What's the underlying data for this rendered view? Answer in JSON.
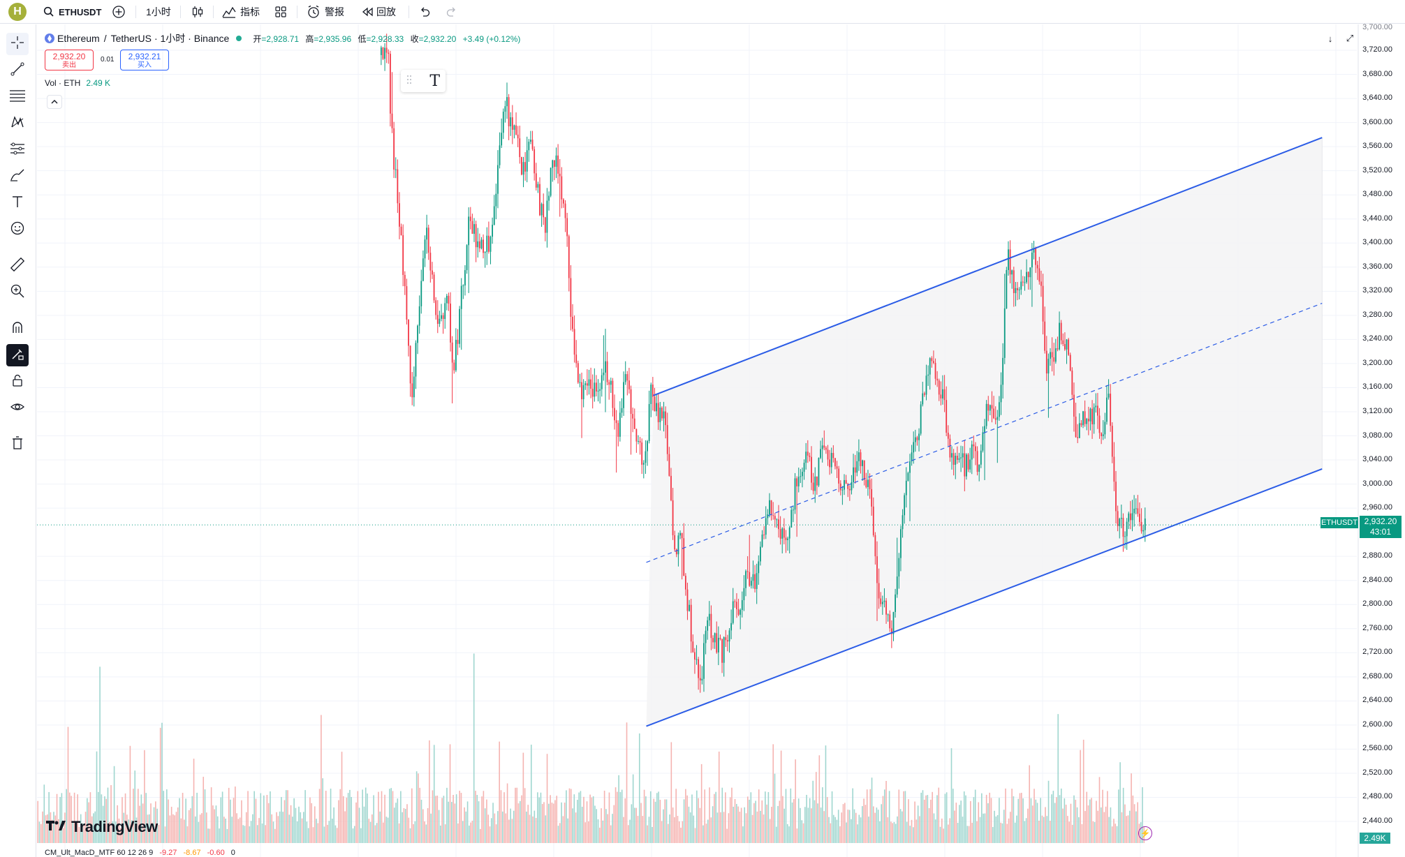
{
  "topbar": {
    "avatar_letter": "H",
    "symbol": "ETHUSDT",
    "interval": "1小时",
    "indicators_label": "指标",
    "alert_label": "警报",
    "replay_label": "回放"
  },
  "legend": {
    "base": "Ethereum",
    "separator": "/",
    "quote": "TetherUS",
    "meta": "· 1小时 · Binance",
    "open_label": "开",
    "open": "=2,928.71",
    "high_label": "高",
    "high": "=2,935.96",
    "low_label": "低",
    "low": "=2,928.33",
    "close_label": "收",
    "close": "=2,932.20",
    "change": "+3.49 (+0.12%)"
  },
  "order": {
    "sell_price": "2,932.20",
    "sell_label": "卖出",
    "spread": "0.01",
    "buy_price": "2,932.21",
    "buy_label": "买入"
  },
  "volume_legend": {
    "label": "Vol · ETH",
    "value": "2.49 K"
  },
  "float_toolbar": {
    "text_icon": "T"
  },
  "axis": {
    "ticks": [
      "3,700.00",
      "3,720.00",
      "3,680.00",
      "3,640.00",
      "3,600.00",
      "3,560.00",
      "3,520.00",
      "3,480.00",
      "3,440.00",
      "3,400.00",
      "3,360.00",
      "3,320.00",
      "3,280.00",
      "3,240.00",
      "3,200.00",
      "3,160.00",
      "3,120.00",
      "3,080.00",
      "3,040.00",
      "3,000.00",
      "2,960.00",
      "2,880.00",
      "2,840.00",
      "2,800.00",
      "2,760.00",
      "2,720.00",
      "2,680.00",
      "2,640.00",
      "2,600.00",
      "2,560.00",
      "2,520.00",
      "2,480.00",
      "2,440.00"
    ]
  },
  "price_tag": {
    "symbol": "ETHUSDT",
    "price": "2,932.20",
    "countdown": "43:01"
  },
  "volume_tag": "2.49K",
  "brand": "TradingView",
  "macd_legend": {
    "label": "CM_Ult_MacD_MTF 60 12 26 9",
    "v1": "-9.27",
    "v2": "-8.67",
    "v3": "-0.60",
    "v4": "0"
  },
  "colors": {
    "up": "#089981",
    "down": "#f23645",
    "channel": "#2b5ce6",
    "volume_up": "#9fd6cf",
    "volume_down": "#f5b3b0"
  },
  "icons": [
    "search-icon",
    "plus-circle-icon",
    "candles-icon",
    "indicators-icon",
    "templates-icon",
    "alert-icon",
    "replay-icon",
    "undo-icon",
    "redo-icon",
    "crosshair-icon",
    "trendline-icon",
    "fib-icon",
    "pattern-icon",
    "prediction-icon",
    "brush-icon",
    "text-icon",
    "emoji-icon",
    "ruler-icon",
    "zoom-icon",
    "magnet-icon",
    "draw-mode-icon",
    "lock-icon",
    "eye-icon",
    "trash-icon"
  ],
  "chart_data": {
    "type": "candlestick",
    "symbol": "ETHUSDT",
    "interval": "1小时",
    "ylim": [
      2420,
      3700
    ],
    "last_price": 2932.2,
    "close_path": [
      [
        0.27,
        3712
      ],
      [
        0.277,
        3700
      ],
      [
        0.278,
        3600
      ],
      [
        0.283,
        3470
      ],
      [
        0.289,
        3300
      ],
      [
        0.293,
        3150
      ],
      [
        0.298,
        3280
      ],
      [
        0.303,
        3420
      ],
      [
        0.308,
        3330
      ],
      [
        0.313,
        3260
      ],
      [
        0.318,
        3320
      ],
      [
        0.323,
        3190
      ],
      [
        0.328,
        3300
      ],
      [
        0.334,
        3440
      ],
      [
        0.34,
        3400
      ],
      [
        0.345,
        3380
      ],
      [
        0.35,
        3420
      ],
      [
        0.355,
        3550
      ],
      [
        0.36,
        3630
      ],
      [
        0.366,
        3580
      ],
      [
        0.372,
        3520
      ],
      [
        0.378,
        3570
      ],
      [
        0.383,
        3480
      ],
      [
        0.388,
        3420
      ],
      [
        0.393,
        3560
      ],
      [
        0.398,
        3500
      ],
      [
        0.403,
        3430
      ],
      [
        0.408,
        3220
      ],
      [
        0.414,
        3150
      ],
      [
        0.419,
        3190
      ],
      [
        0.424,
        3140
      ],
      [
        0.43,
        3200
      ],
      [
        0.435,
        3150
      ],
      [
        0.44,
        3070
      ],
      [
        0.445,
        3200
      ],
      [
        0.45,
        3110
      ],
      [
        0.455,
        3060
      ],
      [
        0.459,
        3020
      ],
      [
        0.463,
        3150
      ],
      [
        0.468,
        3120
      ],
      [
        0.473,
        3100
      ],
      [
        0.477,
        3010
      ],
      [
        0.48,
        2870
      ],
      [
        0.484,
        2930
      ],
      [
        0.489,
        2810
      ],
      [
        0.494,
        2720
      ],
      [
        0.499,
        2680
      ],
      [
        0.504,
        2780
      ],
      [
        0.509,
        2740
      ],
      [
        0.514,
        2720
      ],
      [
        0.52,
        2780
      ],
      [
        0.526,
        2800
      ],
      [
        0.532,
        2850
      ],
      [
        0.538,
        2840
      ],
      [
        0.543,
        2920
      ],
      [
        0.548,
        2960
      ],
      [
        0.553,
        2930
      ],
      [
        0.558,
        2900
      ],
      [
        0.563,
        2950
      ],
      [
        0.568,
        3020
      ],
      [
        0.574,
        3040
      ],
      [
        0.58,
        3000
      ],
      [
        0.586,
        3060
      ],
      [
        0.592,
        3040
      ],
      [
        0.598,
        3010
      ],
      [
        0.604,
        2990
      ],
      [
        0.61,
        3040
      ],
      [
        0.615,
        3020
      ],
      [
        0.62,
        2980
      ],
      [
        0.625,
        2830
      ],
      [
        0.63,
        2790
      ],
      [
        0.635,
        2760
      ],
      [
        0.64,
        2880
      ],
      [
        0.645,
        3020
      ],
      [
        0.65,
        3060
      ],
      [
        0.656,
        3120
      ],
      [
        0.661,
        3200
      ],
      [
        0.666,
        3180
      ],
      [
        0.671,
        3150
      ],
      [
        0.676,
        3050
      ],
      [
        0.681,
        3040
      ],
      [
        0.686,
        3030
      ],
      [
        0.692,
        3050
      ],
      [
        0.697,
        3030
      ],
      [
        0.702,
        3140
      ],
      [
        0.707,
        3120
      ],
      [
        0.712,
        3130
      ],
      [
        0.717,
        3380
      ],
      [
        0.722,
        3320
      ],
      [
        0.727,
        3330
      ],
      [
        0.731,
        3350
      ],
      [
        0.736,
        3400
      ],
      [
        0.74,
        3340
      ],
      [
        0.745,
        3200
      ],
      [
        0.75,
        3220
      ],
      [
        0.755,
        3260
      ],
      [
        0.76,
        3220
      ],
      [
        0.765,
        3080
      ],
      [
        0.77,
        3100
      ],
      [
        0.775,
        3120
      ],
      [
        0.78,
        3110
      ],
      [
        0.785,
        3080
      ],
      [
        0.789,
        3160
      ],
      [
        0.792,
        3040
      ],
      [
        0.795,
        2950
      ],
      [
        0.8,
        2920
      ],
      [
        0.805,
        2950
      ],
      [
        0.81,
        2940
      ],
      [
        0.815,
        2932
      ]
    ],
    "channel": {
      "upper": {
        "from": [
          0.465,
          3147
        ],
        "to": [
          0.941,
          3575
        ]
      },
      "lower": {
        "from": [
          0.46,
          2598
        ],
        "to": [
          0.941,
          3025
        ]
      },
      "middle": {
        "from": [
          0.46,
          2870
        ],
        "to": [
          0.941,
          3300
        ],
        "style": "dashed"
      }
    },
    "volume_unit": "K ETH",
    "grid": true
  }
}
